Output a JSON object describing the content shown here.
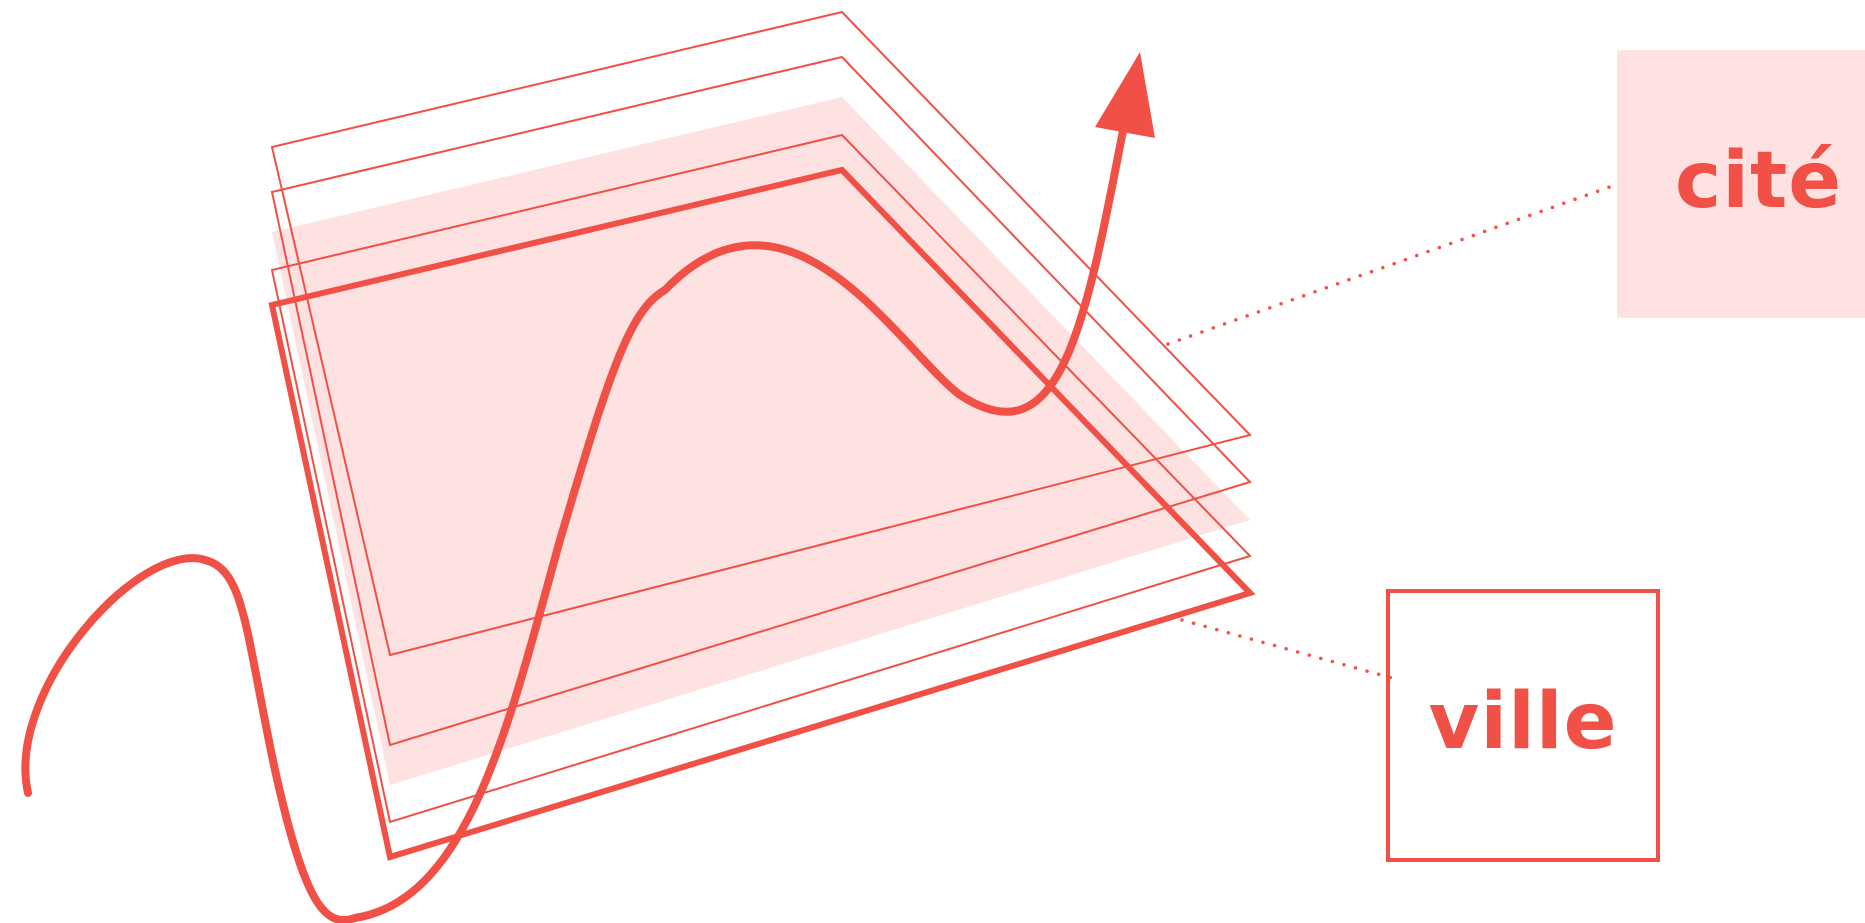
{
  "colors": {
    "stroke": "#f05045",
    "fill": "#fde2e1",
    "background": "#ffffff"
  },
  "labels": {
    "cite": "cité",
    "ville": "ville"
  }
}
